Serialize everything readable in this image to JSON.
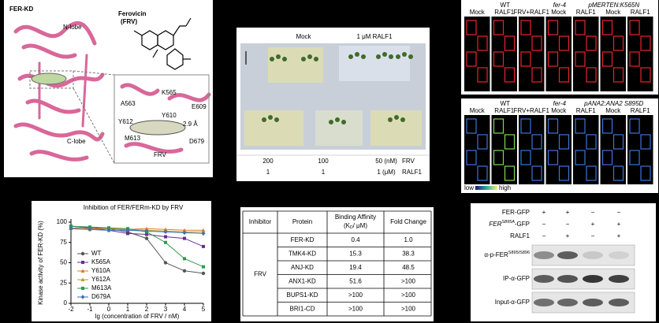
{
  "structure": {
    "title": "FER-KD",
    "n_lobe": "N-lobe",
    "c_lobe": "C-lobe",
    "compound": "Ferovicin",
    "compound_abbr": "(FRV)",
    "residues": [
      "A563",
      "K565",
      "E609",
      "Y610",
      "Y612",
      "M613",
      "D679"
    ],
    "distance": "2.9 Å",
    "ligand": "FRV"
  },
  "plate": {
    "columns": [
      "Mock",
      "1 μM RALF1"
    ],
    "rows": [
      {
        "values": [
          "200",
          "100",
          "50 (nM)"
        ],
        "label": "FRV"
      },
      {
        "values": [
          "1",
          "1",
          "1 (μM)"
        ],
        "label": "RALF1"
      }
    ]
  },
  "microscopy": {
    "top": {
      "groups": [
        "WT",
        "fer-4",
        "pMERTEN:K565N"
      ],
      "columns": [
        "Mock",
        "RALF1",
        "FRV+RALF1",
        "Mock",
        "RALF1",
        "Mock",
        "RALF1"
      ]
    },
    "bottom": {
      "groups": [
        "WT",
        "fer-4",
        "pANA2:ANA2 S895D"
      ],
      "columns": [
        "Mock",
        "RALF1",
        "FRV+RALF1",
        "Mock",
        "RALF1",
        "Mock",
        "RALF1"
      ]
    },
    "scale": [
      "low",
      "high"
    ]
  },
  "chart_data": {
    "type": "line",
    "title": "Inhibition of FER/FERm-KD by FRV",
    "x_label": "lg (concentration of FRV / nM)",
    "y_label": "Kinase activity of FER-KD (%)",
    "x": [
      -2,
      -1,
      0,
      1,
      2,
      3,
      4,
      5
    ],
    "xlim": [
      -2,
      5
    ],
    "xticks": [
      -2,
      -1,
      0,
      1,
      2,
      3,
      4,
      5
    ],
    "ylim": [
      0,
      100
    ],
    "yticks": [
      0,
      25,
      50,
      75,
      100
    ],
    "grid": false,
    "legend": "left",
    "series": [
      {
        "name": "WT",
        "color": "#555555",
        "marker": "circle",
        "values": [
          95,
          93,
          92,
          88,
          80,
          50,
          40,
          37
        ]
      },
      {
        "name": "K565A",
        "color": "#6a2c91",
        "marker": "square",
        "values": [
          95,
          93,
          90,
          86,
          85,
          82,
          80,
          70
        ]
      },
      {
        "name": "Y610A",
        "color": "#e07b20",
        "marker": "triangle",
        "values": [
          93,
          92,
          92,
          91,
          92,
          91,
          90,
          90
        ]
      },
      {
        "name": "Y612A",
        "color": "#b8a020",
        "marker": "triangle",
        "values": [
          92,
          91,
          90,
          91,
          90,
          89,
          88,
          88
        ]
      },
      {
        "name": "M613A",
        "color": "#2e9a4a",
        "marker": "square",
        "values": [
          95,
          94,
          93,
          92,
          88,
          75,
          55,
          45
        ]
      },
      {
        "name": "D679A",
        "color": "#3a6fc4",
        "marker": "diamond",
        "values": [
          92,
          91,
          90,
          90,
          89,
          88,
          87,
          86
        ]
      }
    ]
  },
  "table": {
    "headers": [
      "Inhibitor",
      "Protein",
      "Binding Affinity",
      "Fold Change"
    ],
    "unit": {
      "pre": "(K",
      "sub": "D",
      "post": "/ μM)"
    },
    "inhibitor": "FRV",
    "rows": [
      [
        "FER-KD",
        "0.4",
        "1.0"
      ],
      [
        "TMK4-KD",
        "15.3",
        "38.3"
      ],
      [
        "ANJ-KD",
        "19.4",
        "48.5"
      ],
      [
        "ANX1-KD",
        "51.6",
        ">100"
      ],
      [
        "BUPS1-KD",
        ">100",
        ">100"
      ],
      [
        "BRI1-CD",
        ">100",
        ">100"
      ]
    ]
  },
  "blot": {
    "conditions": [
      {
        "label": "FER-GFP",
        "signs": [
          "+",
          "+",
          "−",
          "−"
        ]
      },
      {
        "label": "FER",
        "sup": "S895A",
        "suffix": "-GFP",
        "signs": [
          "−",
          "−",
          "+",
          "+"
        ]
      },
      {
        "label": "RALF1",
        "signs": [
          "−",
          "+",
          "−",
          "+"
        ]
      }
    ],
    "bands": [
      {
        "label": "α-p-FER",
        "sup": "S895/S896"
      },
      {
        "label": "IP-α-GFP"
      },
      {
        "label": "Input-α-GFP"
      }
    ]
  }
}
